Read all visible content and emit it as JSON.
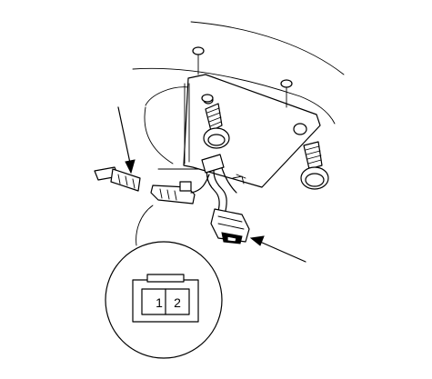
{
  "connector_view": {
    "pin_labels": [
      "1",
      "2"
    ]
  }
}
